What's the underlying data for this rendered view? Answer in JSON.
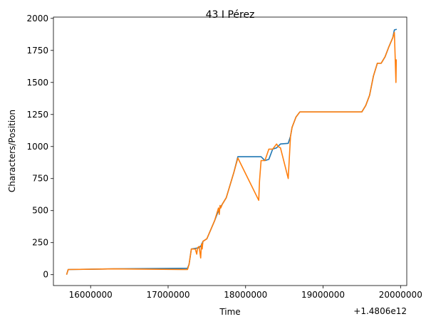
{
  "chart_data": {
    "type": "line",
    "title": "43 I Pérez",
    "xlabel": "Time",
    "ylabel": "Characters/Position",
    "x_offset_label": "+1.4806e12",
    "xlim": [
      15520000,
      20080000
    ],
    "ylim": [
      -85,
      2010
    ],
    "x_ticks": [
      16000000,
      17000000,
      18000000,
      19000000,
      20000000
    ],
    "x_tick_labels": [
      "16000000",
      "17000000",
      "18000000",
      "19000000",
      "20000000"
    ],
    "y_ticks": [
      0,
      250,
      500,
      750,
      1000,
      1250,
      1500,
      1750,
      2000
    ],
    "y_tick_labels": [
      "0",
      "250",
      "500",
      "750",
      "1000",
      "1250",
      "1500",
      "1750",
      "2000"
    ],
    "grid": false,
    "legend": "none",
    "series": [
      {
        "color": "#1f77b4",
        "x": [
          15690000,
          15710000,
          16300000,
          17250000,
          17270000,
          17300000,
          17350000,
          17400000,
          17430000,
          17450000,
          17500000,
          17550000,
          17600000,
          17650000,
          17700000,
          17750000,
          17800000,
          17850000,
          17900000,
          18200000,
          18250000,
          18300000,
          18350000,
          18400000,
          18450000,
          18550000,
          18580000,
          18600000,
          18650000,
          18700000,
          19000000,
          19500000,
          19550000,
          19600000,
          19650000,
          19700000,
          19750000,
          19800000,
          19850000,
          19900000,
          19920000,
          19950000
        ],
        "y": [
          0,
          40,
          45,
          50,
          80,
          200,
          205,
          210,
          230,
          260,
          280,
          350,
          420,
          500,
          550,
          600,
          700,
          800,
          920,
          920,
          890,
          900,
          980,
          990,
          1020,
          1025,
          1080,
          1150,
          1230,
          1270,
          1270,
          1270,
          1320,
          1400,
          1550,
          1650,
          1650,
          1700,
          1780,
          1850,
          1910,
          1915
        ]
      },
      {
        "color": "#ff7f0e",
        "x": [
          15690000,
          15710000,
          16300000,
          17250000,
          17270000,
          17300000,
          17350000,
          17370000,
          17380000,
          17400000,
          17420000,
          17430000,
          17440000,
          17450000,
          17500000,
          17550000,
          17600000,
          17650000,
          17660000,
          17670000,
          17680000,
          17700000,
          17750000,
          17800000,
          17850000,
          17900000,
          18170000,
          18180000,
          18200000,
          18250000,
          18300000,
          18350000,
          18400000,
          18420000,
          18450000,
          18550000,
          18580000,
          18600000,
          18650000,
          18700000,
          19000000,
          19500000,
          19550000,
          19600000,
          19650000,
          19700000,
          19750000,
          19800000,
          19850000,
          19900000,
          19920000,
          19930000,
          19940000,
          19945000
        ],
        "y": [
          0,
          40,
          45,
          40,
          80,
          200,
          200,
          160,
          210,
          220,
          130,
          240,
          200,
          260,
          280,
          350,
          420,
          520,
          470,
          540,
          520,
          550,
          600,
          700,
          800,
          910,
          580,
          730,
          890,
          890,
          980,
          980,
          1020,
          1000,
          990,
          750,
          1080,
          1150,
          1230,
          1270,
          1270,
          1270,
          1320,
          1400,
          1550,
          1650,
          1650,
          1700,
          1780,
          1850,
          1890,
          1700,
          1500,
          1680
        ]
      }
    ]
  }
}
